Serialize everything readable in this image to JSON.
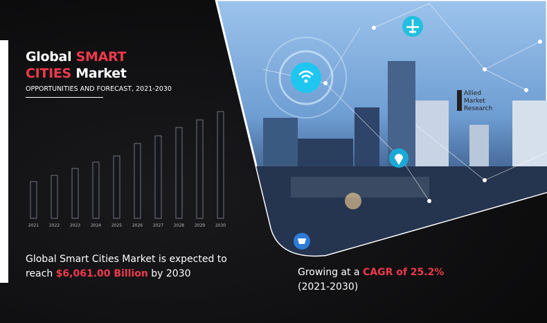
{
  "header": {
    "title_part1": "Global ",
    "title_highlight1": "SMART",
    "title_highlight2": "CITIES",
    "title_part2": " Market",
    "subtitle": "OPPORTUNITIES AND FORECAST, 2021-2030"
  },
  "logo": {
    "line1": "Allied",
    "line2": "Market",
    "line3": "Research"
  },
  "stat_left": {
    "text1": "Global Smart Cities Market is expected to",
    "text2": "reach ",
    "highlight": "$6,061.00 Billion",
    "text3": " by 2030"
  },
  "stat_right": {
    "text1": "Growing at a ",
    "highlight": "CAGR of 25.2%",
    "text2": "(2021-2030)"
  },
  "colors": {
    "accent": "#ee3a4c",
    "background": "#0d0d0f",
    "sky": "#8fb8e6"
  },
  "icons": [
    "wifi-icon",
    "airplane-icon",
    "location-pin-icon",
    "shopping-cart-icon"
  ],
  "chart_data": {
    "type": "bar",
    "categories": [
      "2021",
      "2022",
      "2023",
      "2024",
      "2025",
      "2026",
      "2027",
      "2028",
      "2029",
      "2030"
    ],
    "values": [
      53,
      62,
      72,
      81,
      90,
      108,
      119,
      131,
      142,
      154
    ],
    "value_note": "relative bar heights, unlabeled",
    "title": "",
    "xlabel": "",
    "ylabel": "",
    "grid": false
  }
}
